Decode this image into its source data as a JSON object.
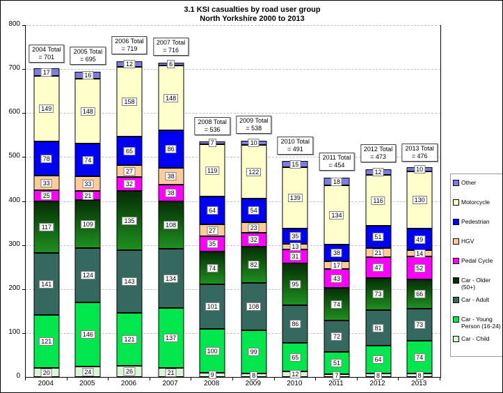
{
  "title": "3.1 KSI casualties by road user group",
  "subtitle": "North Yorkshire 2000 to 2013",
  "chart_data": {
    "type": "bar",
    "stacked": true,
    "title": "3.1 KSI casualties by road user group",
    "subtitle": "North Yorkshire 2000 to 2013",
    "categories": [
      "2004",
      "2005",
      "2006",
      "2007",
      "2008",
      "2009",
      "2010",
      "2011",
      "2012",
      "2013"
    ],
    "ylim": [
      0,
      800
    ],
    "ytick_step": 100,
    "grid": "horizontal-dashed",
    "legend_position": "right",
    "series_bottom_to_top": [
      {
        "name": "Car - Child",
        "color": "#d9f6d9",
        "values": [
          20,
          24,
          26,
          21,
          9,
          8,
          12,
          7,
          8,
          8
        ]
      },
      {
        "name": "Car - Young Person (16-24)",
        "color": "#00e64c",
        "values": [
          121,
          146,
          121,
          137,
          100,
          99,
          65,
          51,
          64,
          74
        ]
      },
      {
        "name": "Car - Adult",
        "color": "#35685e",
        "values": [
          141,
          124,
          143,
          134,
          101,
          108,
          86,
          72,
          81,
          73
        ]
      },
      {
        "name": "Car - Older (50+)",
        "color": "#titleless",
        "gradient_top": "#042f04",
        "gradient_bottom": "#1f8f1f",
        "values": [
          117,
          109,
          135,
          108,
          74,
          82,
          95,
          74,
          73,
          66
        ]
      },
      {
        "name": "Pedal Cycle",
        "color": "#ff00ff",
        "values": [
          25,
          21,
          32,
          38,
          35,
          32,
          31,
          43,
          47,
          52
        ]
      },
      {
        "name": "HGV",
        "color": "#ffcc99",
        "values": [
          33,
          33,
          27,
          38,
          27,
          23,
          13,
          17,
          21,
          14
        ]
      },
      {
        "name": "Pedestrian",
        "color": "#0000f5",
        "values": [
          78,
          74,
          65,
          86,
          64,
          54,
          35,
          38,
          51,
          49
        ]
      },
      {
        "name": "Motorcycle",
        "color": "#ffffcc",
        "values": [
          149,
          148,
          158,
          148,
          119,
          122,
          139,
          134,
          116,
          130
        ]
      },
      {
        "name": "Other",
        "color": "#7b7be0",
        "values": [
          17,
          16,
          12,
          6,
          7,
          10,
          15,
          18,
          12,
          10
        ]
      }
    ],
    "totals": [
      {
        "line1": "2004 Total",
        "line2": "= 701",
        "value": 701
      },
      {
        "line1": "2005 Total",
        "line2": "= 695",
        "value": 695
      },
      {
        "line1": "2006 Total",
        "line2": "= 719",
        "value": 719
      },
      {
        "line1": "2007 Total",
        "line2": "= 716",
        "value": 716
      },
      {
        "line1": "2008 Total",
        "line2": "= 536",
        "value": 536
      },
      {
        "line1": "2009 Total",
        "line2": "= 538",
        "value": 538
      },
      {
        "line1": "2010 Total",
        "line2": "= 491",
        "value": 491
      },
      {
        "line1": "2011 Total",
        "line2": "= 454",
        "value": 454
      },
      {
        "line1": "2012 Total",
        "line2": "= 473",
        "value": 473
      },
      {
        "line1": "2013 Total",
        "line2": "= 476",
        "value": 476
      }
    ],
    "legend_top_to_bottom": [
      "Other",
      "Motorcycle",
      "Pedestrian",
      "HGV",
      "Pedal Cycle",
      "Car - Older (50+)",
      "Car - Adult",
      "Car - Young Person (16-24)",
      "Car - Child"
    ]
  }
}
